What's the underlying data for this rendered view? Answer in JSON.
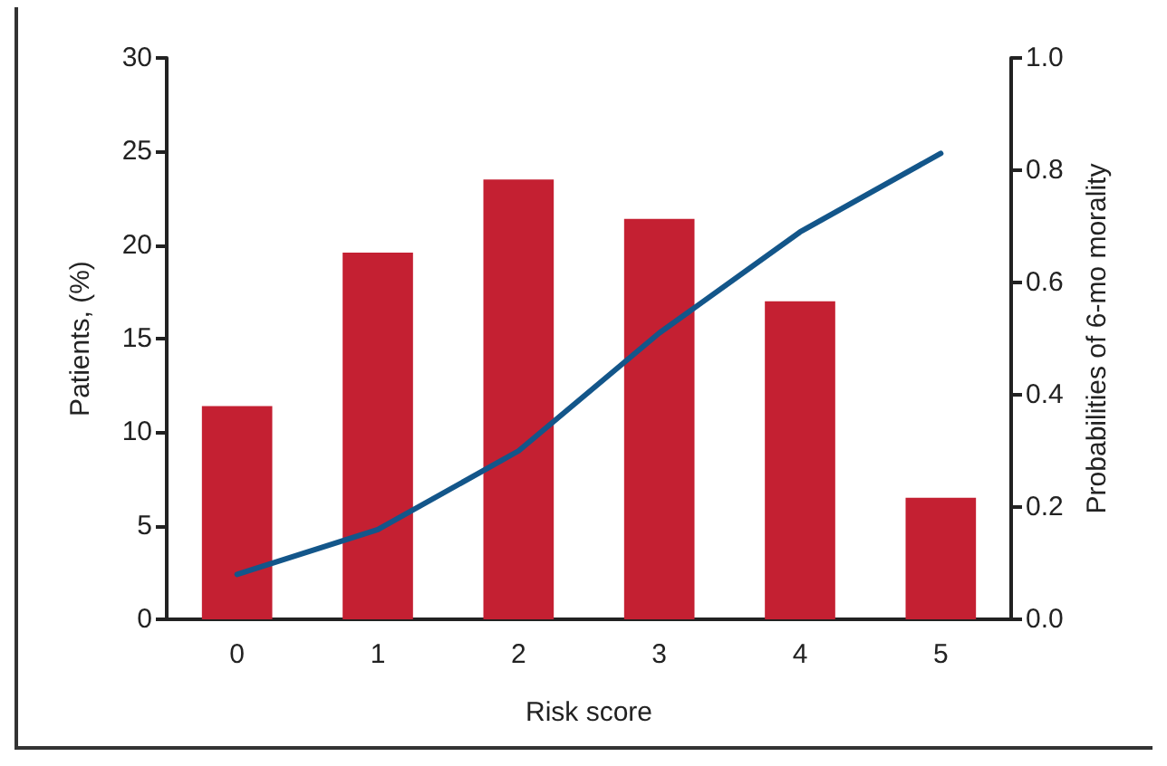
{
  "chart_data": {
    "type": "bar",
    "xlabel": "Risk score",
    "ylabel": "Patients, (%)",
    "y2label": "Probabilities of 6-mo morality",
    "categories": [
      "0",
      "1",
      "2",
      "3",
      "4",
      "5"
    ],
    "series": [
      {
        "color": "#c42032",
        "values": [
          11.4,
          19.6,
          23.5,
          21.4,
          17.0,
          6.5
        ]
      },
      {
        "type": "line",
        "axis": "y2",
        "color": "#13568a",
        "values": [
          0.08,
          0.16,
          0.3,
          0.51,
          0.69,
          0.83
        ]
      }
    ],
    "ylim": [
      0,
      30
    ],
    "yticks": [
      0,
      5,
      10,
      15,
      20,
      25,
      30
    ],
    "y2lim": [
      0,
      1
    ],
    "y2ticks": [
      {
        "value": 0,
        "label": "0.0"
      },
      {
        "value": 0.2,
        "label": "0.2"
      },
      {
        "value": 0.4,
        "label": "0.4"
      },
      {
        "value": 0.6,
        "label": "0.6"
      },
      {
        "value": 0.8,
        "label": "0.8"
      },
      {
        "value": 1,
        "label": "1.0"
      }
    ],
    "grid": false,
    "marker": "none",
    "line_style": "solid"
  }
}
